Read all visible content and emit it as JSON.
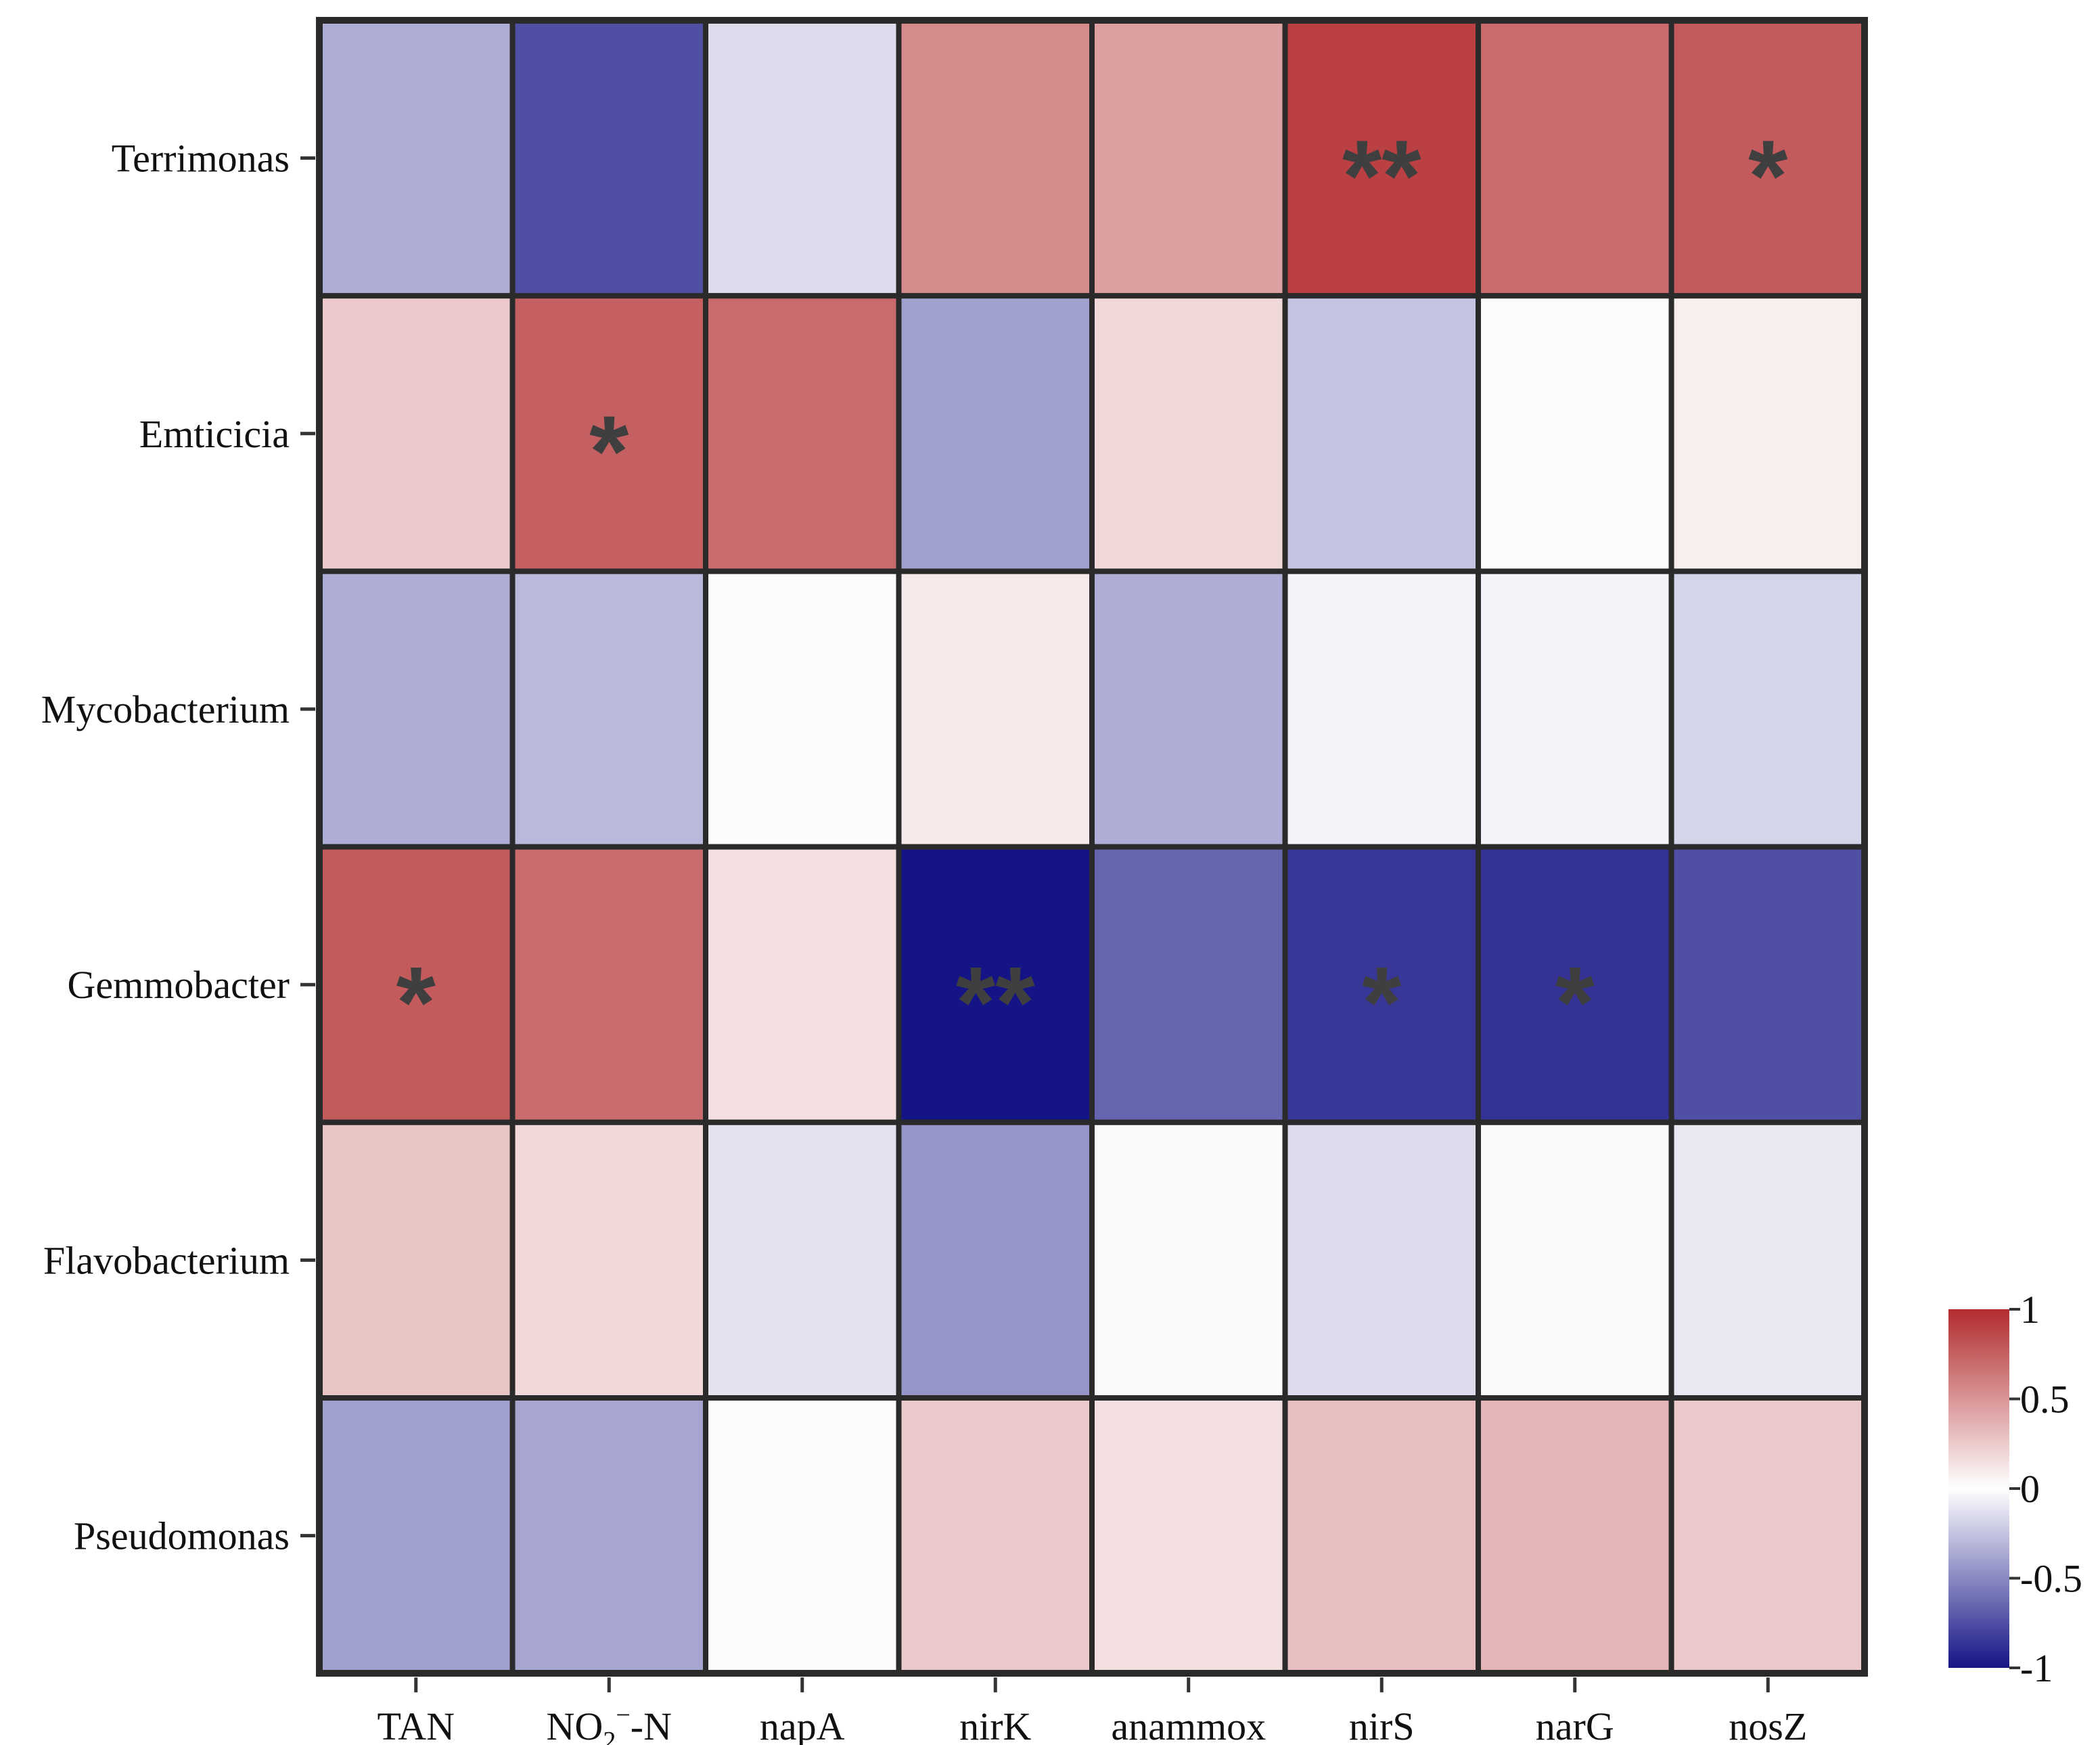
{
  "chart_data": {
    "type": "heatmap",
    "title": "",
    "xlabel": "",
    "ylabel": "",
    "columns": [
      "TAN",
      "NO2−-N",
      "napA",
      "nirK",
      "anammox",
      "nirS",
      "narG",
      "nosZ"
    ],
    "rows": [
      "Terrimonas",
      "Emticicia",
      "Mycobacterium",
      "Gemmobacter",
      "Flavobacterium",
      "Pseudomonas"
    ],
    "values": [
      [
        -0.35,
        -0.75,
        -0.15,
        0.55,
        0.45,
        0.9,
        0.7,
        0.78
      ],
      [
        0.25,
        0.75,
        0.7,
        -0.4,
        0.18,
        -0.25,
        0.02,
        0.08
      ],
      [
        -0.35,
        -0.3,
        0.02,
        0.1,
        -0.35,
        -0.05,
        -0.05,
        -0.18
      ],
      [
        0.78,
        0.7,
        0.15,
        -1.0,
        -0.65,
        -0.85,
        -0.87,
        -0.75
      ],
      [
        0.28,
        0.18,
        -0.12,
        -0.45,
        -0.02,
        -0.15,
        -0.02,
        -0.1
      ],
      [
        -0.4,
        -0.38,
        0.02,
        0.25,
        0.15,
        0.3,
        0.35,
        0.25
      ]
    ],
    "significance": [
      [
        "",
        "",
        "",
        "",
        "",
        "**",
        "",
        "*"
      ],
      [
        "",
        "*",
        "",
        "",
        "",
        "",
        "",
        ""
      ],
      [
        "",
        "",
        "",
        "",
        "",
        "",
        "",
        ""
      ],
      [
        "*",
        "",
        "",
        "**",
        "",
        "*",
        "*",
        ""
      ],
      [
        "",
        "",
        "",
        "",
        "",
        "",
        "",
        ""
      ],
      [
        "",
        "",
        "",
        "",
        "",
        "",
        "",
        ""
      ]
    ],
    "colorbar": {
      "range": [
        -1,
        1
      ],
      "ticks": [
        1,
        0.5,
        0,
        -0.5,
        -1
      ],
      "tick_labels": [
        "1",
        "0.5",
        "0",
        "-0.5",
        "-1"
      ],
      "colors": {
        "low": "#141486",
        "mid": "#ffffff",
        "high": "#b22b2e"
      }
    },
    "grid_color": "#2a2a2a"
  }
}
